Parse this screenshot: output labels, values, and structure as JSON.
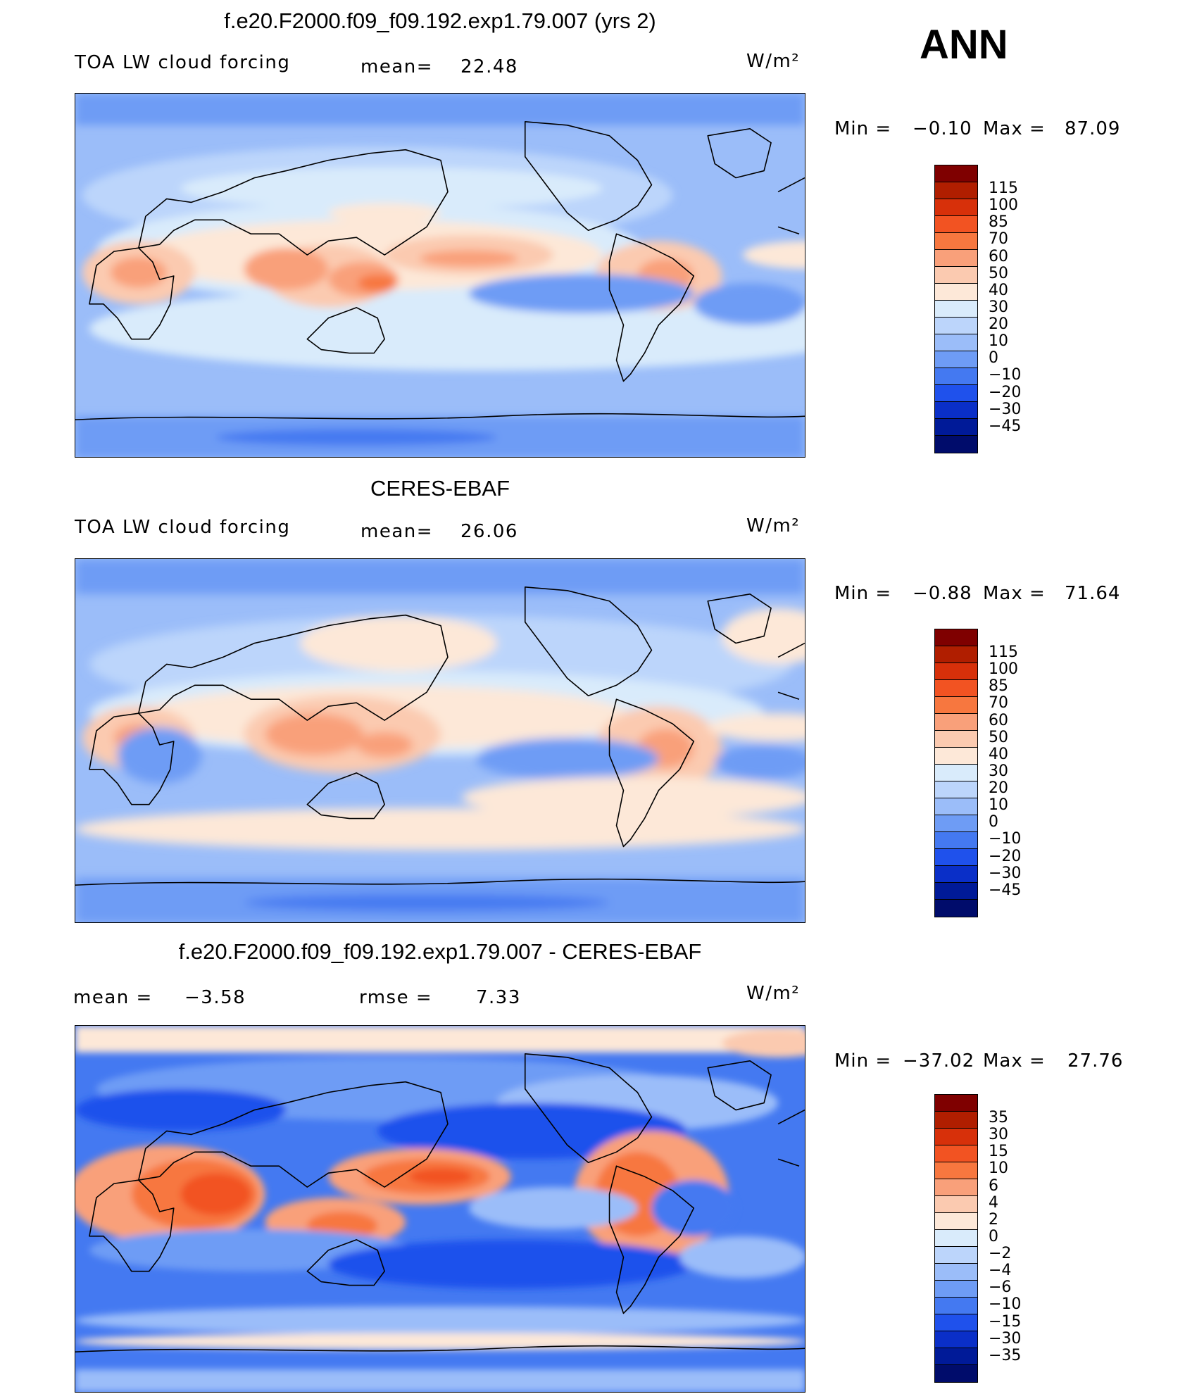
{
  "season": "ANN",
  "panels": [
    {
      "title": "f.e20.F2000.f09_f09.192.exp1.79.007 (yrs 2)",
      "left_label": "TOA LW cloud forcing",
      "mean_label": "mean=",
      "mean_value": "22.48",
      "units": "W/m²",
      "min_label": "Min =",
      "min_value": "−0.10",
      "max_label": "Max =",
      "max_value": "87.09",
      "colorbar_levels": [
        "115",
        "100",
        "85",
        "70",
        "60",
        "50",
        "40",
        "30",
        "20",
        "10",
        "0",
        "−10",
        "−20",
        "−30",
        "−45"
      ]
    },
    {
      "title": "CERES-EBAF",
      "left_label": "TOA LW cloud forcing",
      "mean_label": "mean=",
      "mean_value": "26.06",
      "units": "W/m²",
      "min_label": "Min =",
      "min_value": "−0.88",
      "max_label": "Max =",
      "max_value": "71.64",
      "colorbar_levels": [
        "115",
        "100",
        "85",
        "70",
        "60",
        "50",
        "40",
        "30",
        "20",
        "10",
        "0",
        "−10",
        "−20",
        "−30",
        "−45"
      ]
    },
    {
      "title": "f.e20.F2000.f09_f09.192.exp1.79.007 - CERES-EBAF",
      "left_label": "mean =",
      "left_value": "−3.58",
      "mean_label": "rmse =",
      "mean_value": "7.33",
      "units": "W/m²",
      "min_label": "Min =",
      "min_value": "−37.02",
      "max_label": "Max =",
      "max_value": "27.76",
      "colorbar_levels": [
        "35",
        "30",
        "15",
        "10",
        "6",
        "4",
        "2",
        "0",
        "−2",
        "−4",
        "−6",
        "−10",
        "−15",
        "−30",
        "−35"
      ]
    }
  ],
  "colorbar_colors": [
    "#7f0000",
    "#b01e00",
    "#d7300a",
    "#f25322",
    "#f7773f",
    "#f9a07a",
    "#fbcab0",
    "#fde8d8",
    "#d9ebfb",
    "#bcd5fb",
    "#9bbdf9",
    "#6e9cf5",
    "#4479f1",
    "#1f51ec",
    "#0a2fc8",
    "#001a98",
    "#000c6b"
  ]
}
